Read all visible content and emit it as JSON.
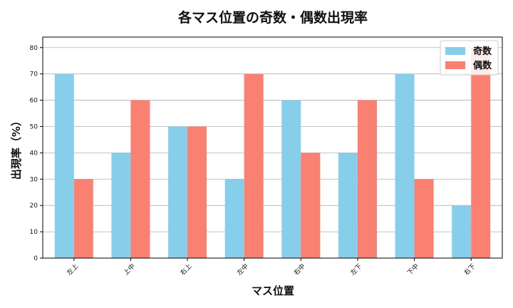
{
  "chart_data": {
    "type": "bar",
    "title": "各マス位置の奇数・偶数出現率",
    "xlabel": "マス位置",
    "ylabel": "出現率（%）",
    "categories": [
      "左上",
      "上中",
      "右上",
      "左中",
      "右中",
      "左下",
      "下中",
      "右下"
    ],
    "series": [
      {
        "name": "奇数",
        "color": "#87CEEB",
        "values": [
          70,
          40,
          50,
          30,
          60,
          40,
          70,
          20
        ]
      },
      {
        "name": "偶数",
        "color": "#FA8072",
        "values": [
          30,
          60,
          50,
          70,
          40,
          60,
          30,
          80
        ]
      }
    ],
    "ylim": [
      0,
      84
    ],
    "yticks": [
      0,
      10,
      20,
      30,
      40,
      50,
      60,
      70,
      80
    ],
    "grid": "horizontal",
    "legend": "top-right"
  }
}
